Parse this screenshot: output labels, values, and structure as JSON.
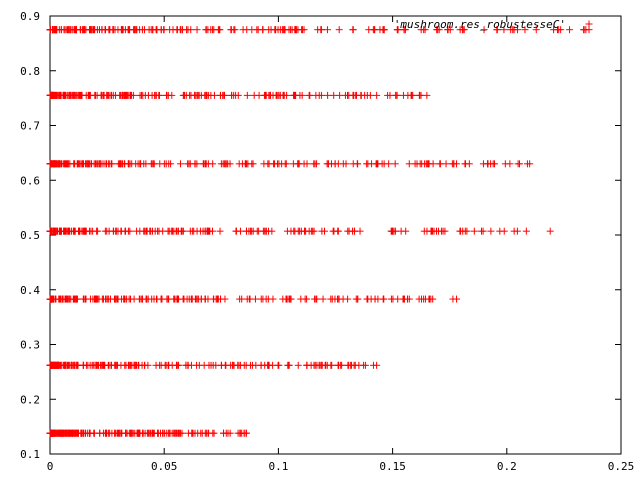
{
  "chart_data": {
    "type": "scatter",
    "title": "",
    "xlabel": "",
    "ylabel": "",
    "xlim": [
      0,
      0.25
    ],
    "ylim": [
      0.1,
      0.9
    ],
    "x_ticks": [
      0,
      0.05,
      0.1,
      0.15,
      0.2,
      0.25
    ],
    "x_tick_labels": [
      "0",
      "0.05",
      "0.1",
      "0.15",
      "0.2",
      "0.25"
    ],
    "y_ticks": [
      0.1,
      0.2,
      0.3,
      0.4,
      0.5,
      0.6,
      0.7,
      0.8,
      0.9
    ],
    "y_tick_labels": [
      "0.1",
      "0.2",
      "0.3",
      "0.4",
      "0.5",
      "0.6",
      "0.7",
      "0.8",
      "0.9"
    ],
    "grid": false,
    "legend_position": "top-right",
    "marker": "plus",
    "color": "#ff0000",
    "series": [
      {
        "name": "'mushroom.res_robustesseC'",
        "bands": [
          {
            "y": 0.875,
            "x_max": 0.236
          },
          {
            "y": 0.755,
            "x_max": 0.165
          },
          {
            "y": 0.63,
            "x_max": 0.21
          },
          {
            "y": 0.507,
            "x_max": 0.219
          },
          {
            "y": 0.383,
            "x_max": 0.178
          },
          {
            "y": 0.262,
            "x_max": 0.143
          },
          {
            "y": 0.138,
            "x_max": 0.086
          }
        ]
      }
    ]
  }
}
